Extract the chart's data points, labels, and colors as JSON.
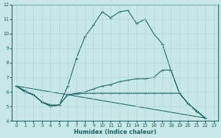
{
  "xlabel": "Humidex (Indice chaleur)",
  "background_color": "#c8e8e8",
  "grid_color": "#b0d4d4",
  "line_color": "#1a6060",
  "xlim": [
    -0.5,
    23.5
  ],
  "ylim": [
    4,
    12
  ],
  "xticks": [
    0,
    1,
    2,
    3,
    4,
    5,
    6,
    7,
    8,
    9,
    10,
    11,
    12,
    13,
    14,
    15,
    16,
    17,
    18,
    19,
    20,
    21,
    22,
    23
  ],
  "yticks": [
    4,
    5,
    6,
    7,
    8,
    9,
    10,
    11,
    12
  ],
  "curve1": {
    "x": [
      0,
      1,
      2,
      3,
      4,
      5,
      6,
      7,
      8,
      9,
      10,
      11,
      12,
      13,
      14,
      15,
      16,
      17,
      18,
      19,
      20,
      21,
      22
    ],
    "y": [
      6.4,
      6.1,
      5.8,
      5.3,
      5.1,
      5.1,
      6.4,
      8.3,
      9.8,
      10.6,
      11.5,
      11.1,
      11.5,
      11.6,
      10.7,
      11.0,
      10.0,
      9.3,
      7.5,
      5.9,
      5.2,
      4.7,
      4.2
    ]
  },
  "curve2": {
    "x": [
      0,
      1,
      2,
      3,
      4,
      5,
      6,
      7,
      8,
      9,
      10,
      11,
      12,
      13,
      14,
      15,
      16,
      17,
      18,
      19,
      20,
      21,
      22
    ],
    "y": [
      6.4,
      6.0,
      5.8,
      5.3,
      5.0,
      5.1,
      5.8,
      5.9,
      6.0,
      6.2,
      6.4,
      6.5,
      6.7,
      6.8,
      6.9,
      6.9,
      7.0,
      7.5,
      7.5,
      5.9,
      5.2,
      4.7,
      4.2
    ]
  },
  "curve3": {
    "x": [
      0,
      1,
      2,
      3,
      4,
      5,
      6,
      7,
      8,
      9,
      10,
      11,
      12,
      13,
      14,
      15,
      16,
      17,
      18,
      19,
      20,
      21,
      22
    ],
    "y": [
      6.4,
      6.0,
      5.8,
      5.3,
      5.0,
      5.1,
      5.8,
      5.85,
      5.9,
      5.9,
      5.9,
      5.9,
      5.9,
      5.9,
      5.9,
      5.9,
      5.9,
      5.9,
      5.9,
      5.9,
      5.2,
      4.65,
      4.2
    ]
  },
  "curve4": {
    "x": [
      0,
      22
    ],
    "y": [
      6.4,
      4.2
    ]
  }
}
